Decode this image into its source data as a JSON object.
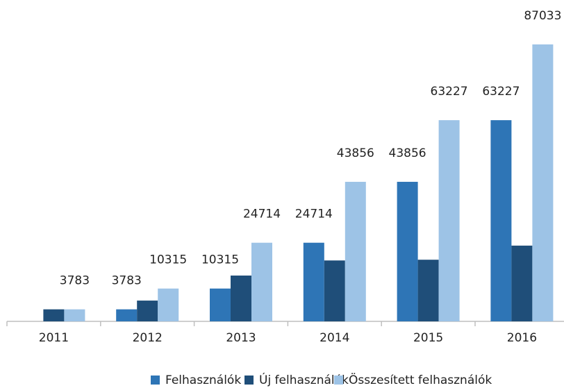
{
  "chart_data": {
    "type": "bar",
    "categories": [
      "2011",
      "2012",
      "2013",
      "2014",
      "2015",
      "2016"
    ],
    "series": [
      {
        "name": "Felhasználók",
        "color": "#2e75b6",
        "data_labels": true,
        "values": [
          null,
          3783,
          10315,
          24714,
          43856,
          63227
        ]
      },
      {
        "name": "Új felhasználók",
        "color": "#1f4e79",
        "data_labels": false,
        "values": [
          3783,
          6532,
          14399,
          19142,
          19371,
          23806
        ]
      },
      {
        "name": "Összesített felhasználók",
        "color": "#9dc3e6",
        "data_labels": true,
        "values": [
          3783,
          10315,
          24714,
          43856,
          63227,
          87033
        ]
      }
    ],
    "ylim": [
      0,
      100000
    ],
    "legend": "bottom"
  }
}
